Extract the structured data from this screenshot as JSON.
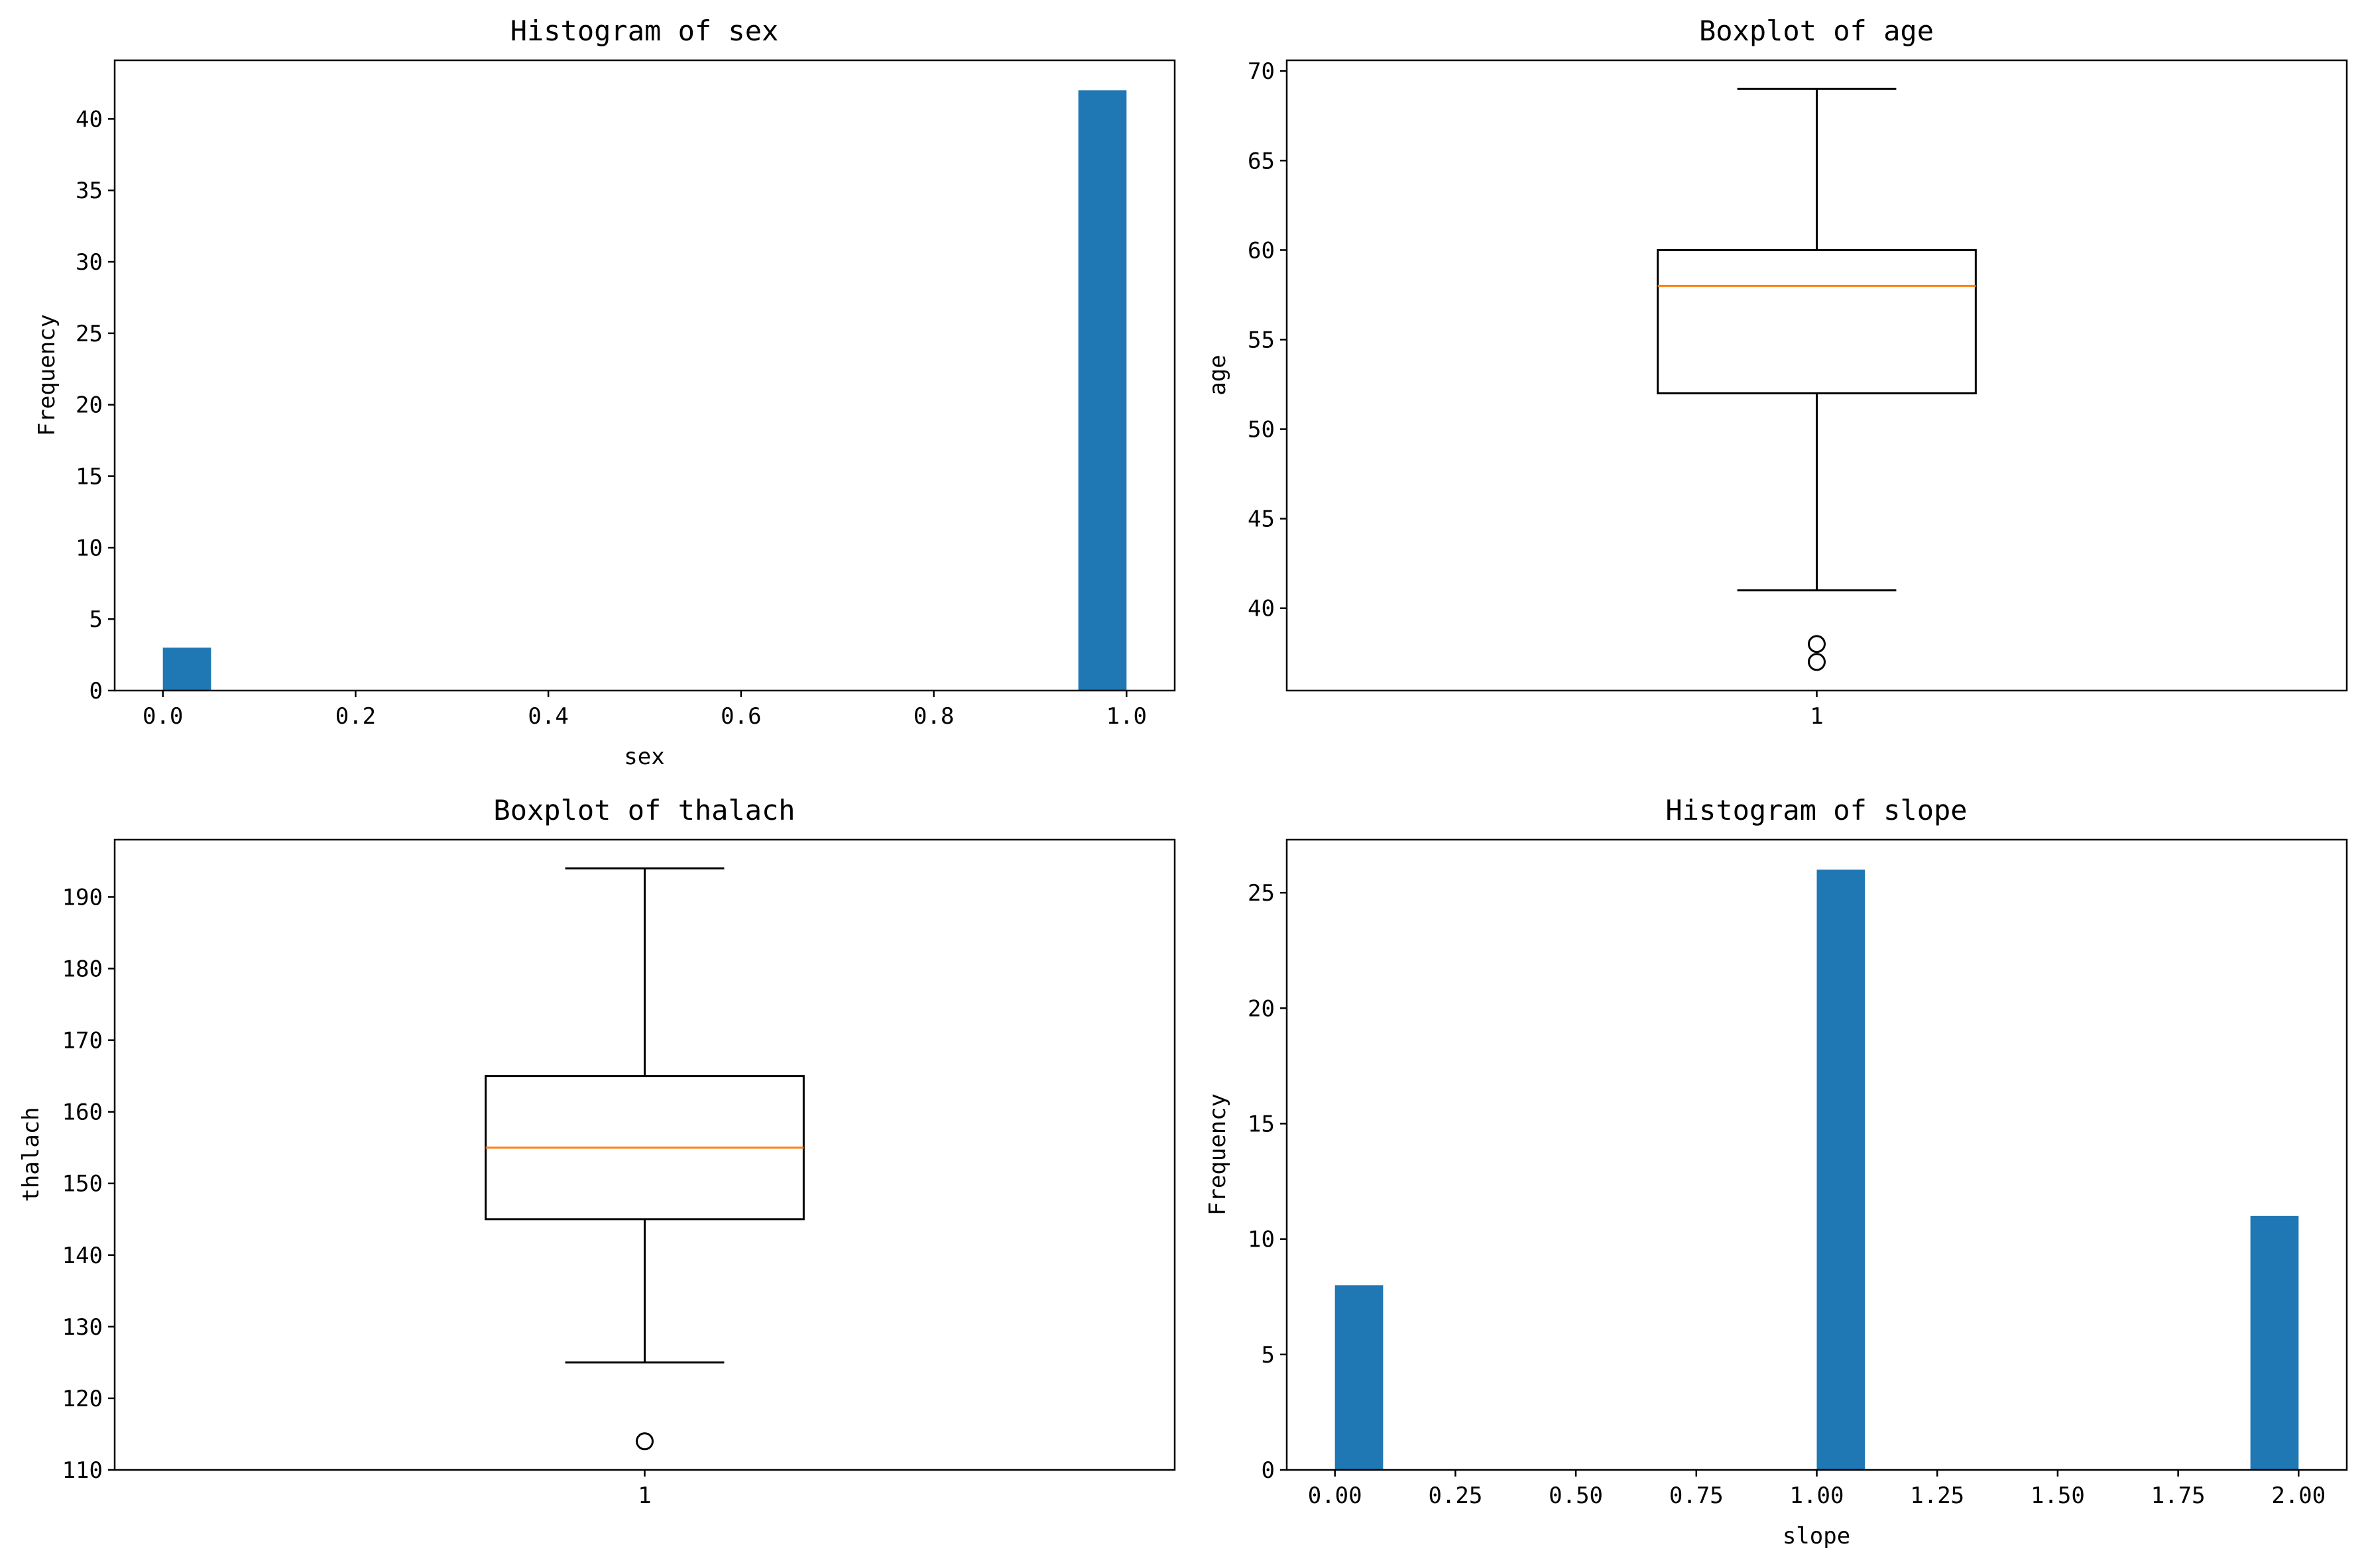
{
  "figure": {
    "background": "#ffffff"
  },
  "colors": {
    "bar": "#1f77b4",
    "median": "#ff7f0e",
    "axes": "#000000"
  },
  "chart_data": [
    {
      "type": "bar",
      "subtype": "histogram",
      "title": "Histogram of sex",
      "xlabel": "sex",
      "ylabel": "Frequency",
      "bin_count": 20,
      "x_range": [
        0,
        1
      ],
      "xlim": [
        -0.05,
        1.05
      ],
      "ylim": [
        0,
        44.1
      ],
      "xticks": [
        0.0,
        0.2,
        0.4,
        0.6,
        0.8,
        1.0
      ],
      "xtick_labels": [
        "0.0",
        "0.2",
        "0.4",
        "0.6",
        "0.8",
        "1.0"
      ],
      "yticks": [
        0,
        5,
        10,
        15,
        20,
        25,
        30,
        35,
        40
      ],
      "ytick_labels": [
        "0",
        "5",
        "10",
        "15",
        "20",
        "25",
        "30",
        "35",
        "40"
      ],
      "bars": [
        {
          "x0": 0.0,
          "x1": 0.05,
          "value": 3
        },
        {
          "x0": 0.95,
          "x1": 1.0,
          "value": 42
        }
      ],
      "grid": false
    },
    {
      "type": "box",
      "title": "Boxplot of age",
      "xlabel": "",
      "ylabel": "age",
      "xlim": [
        0.5,
        1.5
      ],
      "ylim": [
        35.4,
        70.6
      ],
      "xticks": [
        1
      ],
      "xtick_labels": [
        "1"
      ],
      "yticks": [
        40,
        45,
        50,
        55,
        60,
        65,
        70
      ],
      "ytick_labels": [
        "40",
        "45",
        "50",
        "55",
        "60",
        "65",
        "70"
      ],
      "box": {
        "position": 1,
        "whisker_low": 41,
        "q1": 52,
        "median": 58,
        "q3": 60,
        "whisker_high": 69,
        "outliers": [
          37,
          38
        ]
      },
      "grid": false
    },
    {
      "type": "box",
      "title": "Boxplot of thalach",
      "xlabel": "",
      "ylabel": "thalach",
      "xlim": [
        0.5,
        1.5
      ],
      "ylim": [
        110,
        198
      ],
      "xticks": [
        1
      ],
      "xtick_labels": [
        "1"
      ],
      "yticks": [
        110,
        120,
        130,
        140,
        150,
        160,
        170,
        180,
        190
      ],
      "ytick_labels": [
        "110",
        "120",
        "130",
        "140",
        "150",
        "160",
        "170",
        "180",
        "190"
      ],
      "box": {
        "position": 1,
        "whisker_low": 125,
        "q1": 145,
        "median": 155,
        "q3": 165,
        "whisker_high": 194,
        "outliers": [
          114
        ]
      },
      "grid": false
    },
    {
      "type": "bar",
      "subtype": "histogram",
      "title": "Histogram of slope",
      "xlabel": "slope",
      "ylabel": "Frequency",
      "bin_count": 20,
      "x_range": [
        0,
        2
      ],
      "xlim": [
        -0.1,
        2.1
      ],
      "ylim": [
        0,
        27.3
      ],
      "xticks": [
        0.0,
        0.25,
        0.5,
        0.75,
        1.0,
        1.25,
        1.5,
        1.75,
        2.0
      ],
      "xtick_labels": [
        "0.00",
        "0.25",
        "0.50",
        "0.75",
        "1.00",
        "1.25",
        "1.50",
        "1.75",
        "2.00"
      ],
      "yticks": [
        0,
        5,
        10,
        15,
        20,
        25
      ],
      "ytick_labels": [
        "0",
        "5",
        "10",
        "15",
        "20",
        "25"
      ],
      "bars": [
        {
          "x0": 0.0,
          "x1": 0.1,
          "value": 8
        },
        {
          "x0": 1.0,
          "x1": 1.1,
          "value": 26
        },
        {
          "x0": 1.9,
          "x1": 2.0,
          "value": 11
        }
      ],
      "grid": false
    }
  ]
}
